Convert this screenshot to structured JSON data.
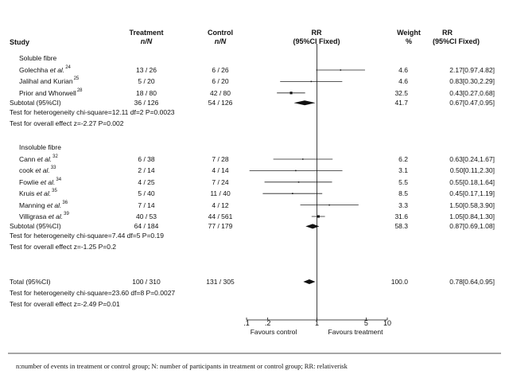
{
  "chart_data": {
    "type": "forest",
    "scale": "log",
    "xlim": [
      0.1,
      10
    ],
    "x_ticks": [
      {
        "value": 0.1,
        "label": ".1"
      },
      {
        "value": 0.2,
        "label": ".2"
      },
      {
        "value": 1,
        "label": "1"
      },
      {
        "value": 5,
        "label": "5"
      },
      {
        "value": 10,
        "label": "10"
      }
    ],
    "x_caption_left": "Favours control",
    "x_caption_right": "Favours treatment",
    "headers": {
      "study": "Study",
      "treatment": "Treatment",
      "treatment_sub": "n/N",
      "control": "Control",
      "control_sub": "n/N",
      "rr": "RR",
      "rr_sub": "(95%CI Fixed)",
      "weight": "Weight",
      "weight_sub": "%",
      "rr2": "RR",
      "rr2_sub": "(95%CI Fixed)"
    },
    "groups": [
      {
        "name": "Soluble fibre",
        "studies": [
          {
            "author": "Golechha",
            "etal": true,
            "ref": "24",
            "treatment": "13 / 26",
            "control": "6 / 26",
            "rr": 2.17,
            "lo": 0.97,
            "hi": 4.82,
            "weight": "4.6",
            "rr_text": "2.17[0.97,4.82]"
          },
          {
            "author": "Jalihal and Kurian",
            "etal": false,
            "ref": "25",
            "treatment": "5 / 20",
            "control": "6 / 20",
            "rr": 0.83,
            "lo": 0.3,
            "hi": 2.29,
            "weight": "4.6",
            "rr_text": "0.83[0.30,2.29]"
          },
          {
            "author": "Prior and Whorwell",
            "etal": false,
            "ref": "28",
            "treatment": "18 / 80",
            "control": "42 / 80",
            "rr": 0.43,
            "lo": 0.27,
            "hi": 0.68,
            "weight": "32.5",
            "rr_text": "0.43[0.27,0.68]"
          }
        ],
        "subtotal": {
          "label": "Subtotal (95%CI)",
          "treatment": "36 / 126",
          "control": "54 / 126",
          "rr": 0.67,
          "lo": 0.47,
          "hi": 0.95,
          "weight": "41.7",
          "rr_text": "0.67[0.47,0.95]"
        },
        "heterogeneity": "Test for heterogeneity chi-square=12.11 df=2 P=0.0023",
        "overall": "Test for overall effect z=-2.27 P=0.002"
      },
      {
        "name": "Insoluble fibre",
        "studies": [
          {
            "author": "Cann",
            "etal": true,
            "ref": "32",
            "treatment": "6 / 38",
            "control": "7 / 28",
            "rr": 0.63,
            "lo": 0.24,
            "hi": 1.67,
            "weight": "6.2",
            "rr_text": "0.63[0.24,1.67]"
          },
          {
            "author": "cook",
            "etal": true,
            "ref": "33",
            "treatment": "2 / 14",
            "control": "4 / 14",
            "rr": 0.5,
            "lo": 0.11,
            "hi": 2.3,
            "weight": "3.1",
            "rr_text": "0.50[0.11,2.30]"
          },
          {
            "author": "Fowlie",
            "etal": true,
            "ref": "34",
            "treatment": "4 / 25",
            "control": "7 / 24",
            "rr": 0.55,
            "lo": 0.18,
            "hi": 1.64,
            "weight": "5.5",
            "rr_text": "0.55[0.18,1.64]"
          },
          {
            "author": "Kruis",
            "etal": true,
            "ref": "35",
            "treatment": "5 / 40",
            "control": "11 / 40",
            "rr": 0.45,
            "lo": 0.17,
            "hi": 1.19,
            "weight": "8.5",
            "rr_text": "0.45[0.17,1.19]"
          },
          {
            "author": "Manning",
            "etal": true,
            "ref": "36",
            "treatment": "7 / 14",
            "control": "4 / 12",
            "rr": 1.5,
            "lo": 0.58,
            "hi": 3.9,
            "weight": "3.3",
            "rr_text": "1.50[0.58,3.90]"
          },
          {
            "author": "Villigrasa",
            "etal": true,
            "ref": "39",
            "treatment": "40 / 53",
            "control": "44 / 561",
            "rr": 1.05,
            "lo": 0.84,
            "hi": 1.3,
            "weight": "31.6",
            "rr_text": "1.05[0.84,1.30]"
          }
        ],
        "subtotal": {
          "label": "Subtotal (95%CI)",
          "treatment": "64 / 184",
          "control": "77 / 179",
          "rr": 0.87,
          "lo": 0.69,
          "hi": 1.08,
          "weight": "58.3",
          "rr_text": "0.87[0.69,1.08]"
        },
        "heterogeneity": "Test for heterogeneity chi-square=7.44 df=5 P=0.19",
        "overall": "Test for overall effect z=-1.25 P=0.2"
      }
    ],
    "total": {
      "label": "Total (95%CI)",
      "treatment": "100 / 310",
      "control": "131 / 305",
      "rr": 0.78,
      "lo": 0.64,
      "hi": 0.95,
      "weight": "100.0",
      "rr_text": "0.78[0.64,0.95]",
      "heterogeneity": "Test for heterogeneity chi-square=23.60 df=8 P=0.0027",
      "overall": "Test for overall effect z=-2.49 P=0.01"
    }
  },
  "footnote": "n:number of events in treatment or control group; N: number of participants in treatment or control group; RR: relativerisk"
}
